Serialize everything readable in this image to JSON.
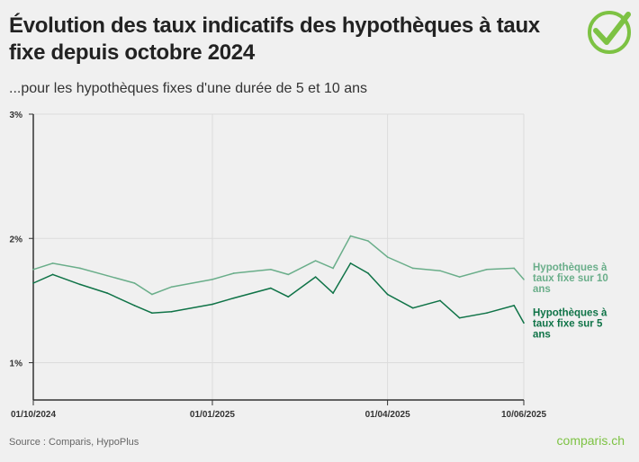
{
  "title": "Évolution des taux indicatifs des hypothèques à taux fixe depuis octobre 2024",
  "subtitle": "...pour les hypothèques fixes d'une durée de 5 et 10 ans",
  "source": "Source : Comparis, HypoPlus",
  "brand": "comparis.ch",
  "colors": {
    "ten_year": "#6aae8a",
    "five_year": "#0f7347",
    "logo": "#7dc243"
  },
  "chart_data": {
    "type": "line",
    "title": "",
    "xlabel": "",
    "ylabel": "",
    "ylim": [
      0.7,
      3
    ],
    "y_ticks": [
      "1%",
      "2%",
      "3%"
    ],
    "y_tick_values": [
      1,
      2,
      3
    ],
    "xlim": [
      "2024-10-01",
      "2025-06-10"
    ],
    "x_ticks": [
      "01/10/2024",
      "01/01/2025",
      "01/04/2025",
      "10/06/2025"
    ],
    "x_tick_dates": [
      "2024-10-01",
      "2025-01-01",
      "2025-04-01",
      "2025-06-10"
    ],
    "grid": true,
    "legend": "right, inline labels at line ends",
    "x": [
      "2024-10-01",
      "2024-10-11",
      "2024-10-25",
      "2024-11-08",
      "2024-11-22",
      "2024-12-01",
      "2024-12-11",
      "2025-01-01",
      "2025-01-12",
      "2025-01-31",
      "2025-02-09",
      "2025-02-23",
      "2025-03-04",
      "2025-03-13",
      "2025-03-22",
      "2025-04-01",
      "2025-04-14",
      "2025-04-28",
      "2025-05-08",
      "2025-05-22",
      "2025-06-05",
      "2025-06-10"
    ],
    "series": [
      {
        "name": "Hypothèques à taux fixe sur 10 ans",
        "values": [
          1.75,
          1.8,
          1.76,
          1.7,
          1.64,
          1.55,
          1.61,
          1.67,
          1.72,
          1.75,
          1.71,
          1.82,
          1.76,
          2.02,
          1.98,
          1.85,
          1.76,
          1.74,
          1.69,
          1.75,
          1.76,
          1.67
        ]
      },
      {
        "name": "Hypothèques à taux fixe sur 5 ans",
        "values": [
          1.64,
          1.71,
          1.63,
          1.56,
          1.46,
          1.4,
          1.41,
          1.47,
          1.52,
          1.6,
          1.53,
          1.69,
          1.56,
          1.8,
          1.72,
          1.55,
          1.44,
          1.5,
          1.36,
          1.4,
          1.46,
          1.32
        ]
      }
    ]
  }
}
